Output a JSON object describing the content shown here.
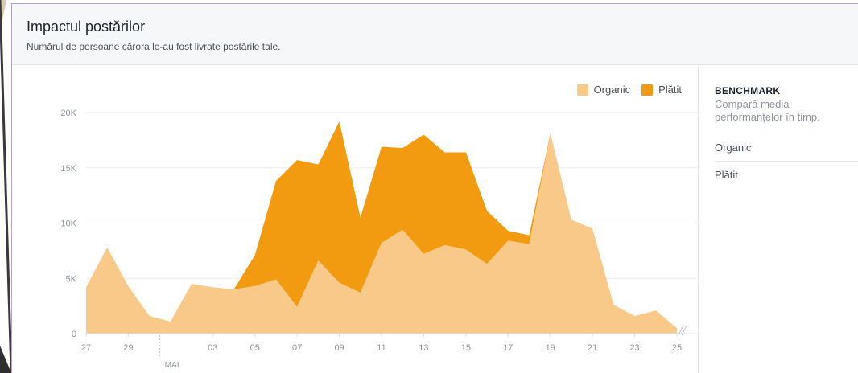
{
  "header": {
    "title": "Impactul postărilor",
    "subtitle": "Numărul de persoane cărora le-au fost livrate postările tale."
  },
  "legend": {
    "organic_label": "Organic",
    "paid_label": "Plătit"
  },
  "sidebar": {
    "title": "BENCHMARK",
    "description": "Compară media performanțelor în timp.",
    "options": [
      "Organic",
      "Plătit"
    ]
  },
  "colors": {
    "organic": "#f9c98a",
    "paid": "#f29a10",
    "grid": "#e9ebee",
    "axis_text": "#90949c"
  },
  "chart_data": {
    "type": "area",
    "stacked": true,
    "x": [
      "27",
      "28",
      "29",
      "30",
      "01",
      "02",
      "03",
      "04",
      "05",
      "06",
      "07",
      "08",
      "09",
      "10",
      "11",
      "12",
      "13",
      "14",
      "15",
      "16",
      "17",
      "18",
      "19",
      "20",
      "21",
      "22",
      "23",
      "24",
      "25"
    ],
    "x_tick_labels": [
      "27",
      "29",
      "03",
      "05",
      "07",
      "09",
      "11",
      "13",
      "15",
      "17",
      "19",
      "21",
      "23",
      "25"
    ],
    "month_marker": {
      "label": "MAI",
      "between": [
        "30",
        "01"
      ]
    },
    "series": [
      {
        "name": "Organic",
        "values": [
          4200,
          7800,
          4300,
          1600,
          1100,
          4500,
          4200,
          4000,
          4300,
          4900,
          2400,
          6600,
          4600,
          3700,
          8200,
          9400,
          7200,
          8000,
          7600,
          6300,
          8400,
          8100,
          18000,
          10300,
          9500,
          2600,
          1600,
          2100,
          500
        ]
      },
      {
        "name": "Plătit",
        "values": [
          0,
          0,
          0,
          0,
          0,
          0,
          0,
          0,
          2800,
          8900,
          13300,
          8700,
          14600,
          6800,
          8700,
          7400,
          10800,
          8400,
          8800,
          4800,
          900,
          800,
          100,
          0,
          0,
          0,
          0,
          0,
          0
        ]
      }
    ],
    "ylim": [
      0,
      20000
    ],
    "y_ticks": [
      0,
      5000,
      10000,
      15000,
      20000
    ],
    "y_tick_labels": [
      "0",
      "5K",
      "10K",
      "15K",
      "20K"
    ],
    "grid": true,
    "legend_position": "top-right"
  }
}
